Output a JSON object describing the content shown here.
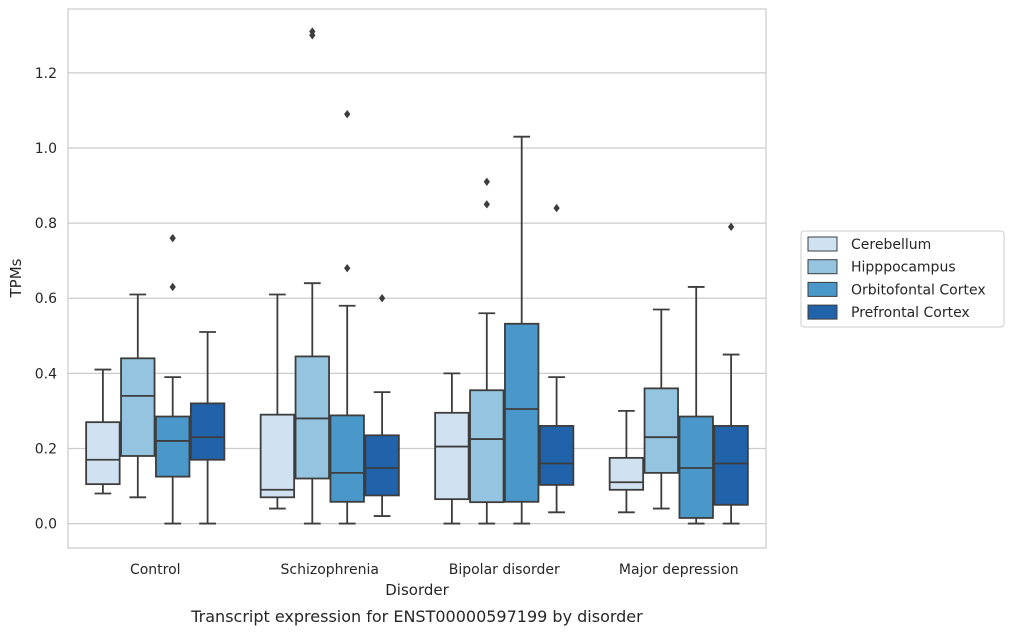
{
  "chart_data": {
    "type": "box",
    "caption": "Transcript expression for ENST00000597199 by disorder",
    "xlabel": "Disorder",
    "ylabel": "TPMs",
    "ylim": [
      -0.065,
      1.37
    ],
    "yticks": [
      0.0,
      0.2,
      0.4,
      0.6,
      0.8,
      1.0,
      1.2
    ],
    "ytick_labels": [
      "0.0",
      "0.2",
      "0.4",
      "0.6",
      "0.8",
      "1.0",
      "1.2"
    ],
    "grid": "horizontal",
    "legend_position": "right",
    "categories": [
      "Control",
      "Schizophrenia",
      "Bipolar disorder",
      "Major depression"
    ],
    "series": [
      {
        "name": "Cerebellum",
        "color": "#d0e1f2",
        "boxes": [
          {
            "whislo": 0.08,
            "q1": 0.105,
            "med": 0.17,
            "q3": 0.27,
            "whishi": 0.41,
            "fliers": []
          },
          {
            "whislo": 0.04,
            "q1": 0.07,
            "med": 0.09,
            "q3": 0.29,
            "whishi": 0.61,
            "fliers": []
          },
          {
            "whislo": 0.0,
            "q1": 0.065,
            "med": 0.205,
            "q3": 0.295,
            "whishi": 0.4,
            "fliers": []
          },
          {
            "whislo": 0.03,
            "q1": 0.09,
            "med": 0.11,
            "q3": 0.175,
            "whishi": 0.3,
            "fliers": []
          }
        ]
      },
      {
        "name": "Hipppocampus",
        "color": "#94c4df",
        "boxes": [
          {
            "whislo": 0.07,
            "q1": 0.18,
            "med": 0.34,
            "q3": 0.44,
            "whishi": 0.61,
            "fliers": []
          },
          {
            "whislo": 0.0,
            "q1": 0.12,
            "med": 0.28,
            "q3": 0.445,
            "whishi": 0.64,
            "fliers": [
              1.3,
              1.31
            ]
          },
          {
            "whislo": 0.0,
            "q1": 0.057,
            "med": 0.225,
            "q3": 0.355,
            "whishi": 0.56,
            "fliers": [
              0.85,
              0.91
            ]
          },
          {
            "whislo": 0.04,
            "q1": 0.135,
            "med": 0.23,
            "q3": 0.36,
            "whishi": 0.57,
            "fliers": []
          }
        ]
      },
      {
        "name": "Orbitofontal Cortex",
        "color": "#4a98c9",
        "boxes": [
          {
            "whislo": 0.0,
            "q1": 0.125,
            "med": 0.22,
            "q3": 0.285,
            "whishi": 0.39,
            "fliers": [
              0.63,
              0.76
            ]
          },
          {
            "whislo": 0.0,
            "q1": 0.058,
            "med": 0.135,
            "q3": 0.288,
            "whishi": 0.58,
            "fliers": [
              0.68,
              1.09
            ]
          },
          {
            "whislo": 0.0,
            "q1": 0.058,
            "med": 0.305,
            "q3": 0.532,
            "whishi": 1.03,
            "fliers": []
          },
          {
            "whislo": 0.0,
            "q1": 0.015,
            "med": 0.148,
            "q3": 0.285,
            "whishi": 0.63,
            "fliers": []
          }
        ]
      },
      {
        "name": "Prefrontal Cortex",
        "color": "#2163aa",
        "boxes": [
          {
            "whislo": 0.0,
            "q1": 0.17,
            "med": 0.23,
            "q3": 0.32,
            "whishi": 0.51,
            "fliers": []
          },
          {
            "whislo": 0.02,
            "q1": 0.075,
            "med": 0.148,
            "q3": 0.235,
            "whishi": 0.35,
            "fliers": [
              0.6
            ]
          },
          {
            "whislo": 0.03,
            "q1": 0.103,
            "med": 0.16,
            "q3": 0.26,
            "whishi": 0.39,
            "fliers": [
              0.84
            ]
          },
          {
            "whislo": 0.0,
            "q1": 0.05,
            "med": 0.16,
            "q3": 0.26,
            "whishi": 0.45,
            "fliers": [
              0.79
            ]
          }
        ]
      }
    ]
  }
}
